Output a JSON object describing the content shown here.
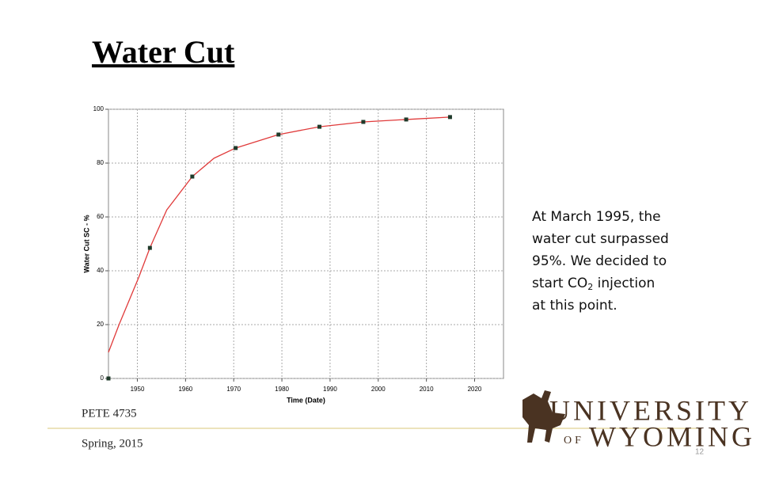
{
  "slide": {
    "title": "Water Cut",
    "course": "PETE  4735",
    "term": "Spring, 2015",
    "page": "12",
    "note": {
      "lines": [
        "At March 1995, the",
        "water cut surpassed",
        "95%.  We decided to"
      ],
      "line4": [
        "start CO",
        "2",
        " injection"
      ],
      "last": "at this point."
    },
    "logo": {
      "top": "UNIVERSITY",
      "of": "OF",
      "bottom": "WYOMING"
    }
  },
  "chart_data": {
    "type": "line",
    "x_label": "Time (Date)",
    "y_label": "Water Cut SC - %",
    "xlim": [
      1944,
      2026
    ],
    "xticks": [
      1950,
      1960,
      1970,
      1980,
      1990,
      2000,
      2010,
      2020
    ],
    "ylim": [
      0,
      100
    ],
    "yticks": [
      0,
      20,
      40,
      60,
      80,
      100
    ],
    "grid": true,
    "series": [
      {
        "color": "#e03a3a",
        "x": [
          1944,
          1946.2,
          1950.3,
          1952.6,
          1956.1,
          1961.4,
          1965.9,
          1970.4,
          1979.3,
          1987.8,
          1996.9,
          2005.8,
          2014.9
        ],
        "values": [
          9.7,
          20,
          37.6,
          48.5,
          62.6,
          75,
          81.8,
          85.6,
          90.6,
          93.5,
          95.3,
          96.2,
          97.1
        ]
      },
      {
        "color": "#1f3a2a",
        "marker": "square",
        "x": [
          1944,
          1952.6,
          1961.4,
          1970.4,
          1979.3,
          1987.8,
          1996.9,
          2005.8,
          2014.9
        ],
        "values": [
          0,
          48.5,
          75,
          85.6,
          90.6,
          93.5,
          95.3,
          96.2,
          97.1
        ]
      }
    ]
  }
}
